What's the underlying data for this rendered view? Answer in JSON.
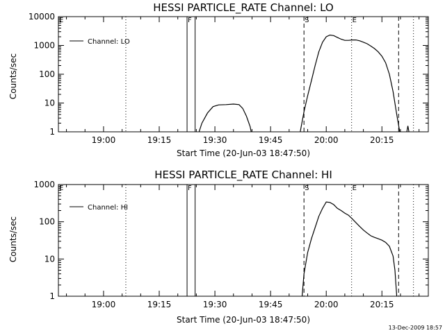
{
  "chart_data": [
    {
      "type": "line",
      "title": "HESSI PARTICLE_RATE Channel: LO",
      "xlabel": "Start Time (20-Jun-03 18:47:50)",
      "ylabel": "Counts/sec",
      "yscale": "log",
      "ylim": [
        1,
        10000
      ],
      "xlim": [
        "18:47:50",
        "20:27:30"
      ],
      "x_ticks": [
        "19:00",
        "19:15",
        "19:30",
        "19:45",
        "20:00",
        "20:15"
      ],
      "y_ticks": [
        "1",
        "10",
        "100",
        "1000",
        "10000"
      ],
      "legend": {
        "placement": "top-left",
        "entries": [
          "Channel: LO"
        ]
      },
      "markers": [
        {
          "label": "E",
          "time": "18:47:50",
          "style": "none"
        },
        {
          "label": "",
          "time": "19:06:00",
          "style": "dotted"
        },
        {
          "label": "F",
          "time": "19:22:30",
          "style": "solid"
        },
        {
          "label": "",
          "time": "19:24:40",
          "style": "solid"
        },
        {
          "label": "S",
          "time": "19:54:00",
          "style": "dashed"
        },
        {
          "label": "E",
          "time": "20:06:50",
          "style": "dotted"
        },
        {
          "label": "",
          "time": "20:19:30",
          "style": "dashed"
        },
        {
          "label": "",
          "time": "20:23:30",
          "style": "dotted"
        }
      ],
      "series": [
        {
          "name": "Channel: LO",
          "segments": [
            {
              "x": [
                "19:25:20",
                "19:26:30",
                "19:28:00",
                "19:29:30",
                "19:31:00",
                "19:33:00",
                "19:35:00",
                "19:36:30",
                "19:37:30",
                "19:38:30",
                "19:39:30",
                "19:40:00"
              ],
              "y": [
                0.7,
                2.0,
                4.5,
                7.5,
                8.6,
                8.8,
                9.2,
                8.8,
                6.5,
                3.5,
                1.5,
                0.7
              ]
            },
            {
              "x": [
                "19:53:00",
                "19:54:00",
                "19:55:00",
                "19:56:00",
                "19:57:00",
                "19:58:00",
                "19:59:00",
                "20:00:00",
                "20:01:00",
                "20:02:00",
                "20:03:00",
                "20:04:00",
                "20:05:00",
                "20:06:00",
                "20:07:00",
                "20:08:00",
                "20:09:00",
                "20:10:00",
                "20:11:00",
                "20:12:00",
                "20:13:00",
                "20:14:00",
                "20:15:00",
                "20:16:00",
                "20:17:00",
                "20:18:00",
                "20:19:00",
                "20:20:00"
              ],
              "y": [
                1,
                5,
                18,
                60,
                200,
                600,
                1300,
                2000,
                2300,
                2200,
                1900,
                1650,
                1500,
                1500,
                1550,
                1550,
                1450,
                1300,
                1150,
                950,
                780,
                600,
                420,
                250,
                100,
                25,
                4,
                0.7
              ]
            },
            {
              "x": [
                "20:21:30",
                "20:22:00",
                "20:22:30"
              ],
              "y": [
                0.7,
                1.6,
                0.7
              ]
            }
          ]
        }
      ]
    },
    {
      "type": "line",
      "title": "HESSI PARTICLE_RATE Channel: HI",
      "xlabel": "Start Time (20-Jun-03 18:47:50)",
      "ylabel": "Counts/sec",
      "yscale": "log",
      "ylim": [
        1,
        1000
      ],
      "xlim": [
        "18:47:50",
        "20:27:30"
      ],
      "x_ticks": [
        "19:00",
        "19:15",
        "19:30",
        "19:45",
        "20:00",
        "20:15"
      ],
      "y_ticks": [
        "1",
        "10",
        "100",
        "1000"
      ],
      "legend": {
        "placement": "top-left",
        "entries": [
          "Channel: HI"
        ]
      },
      "markers": [
        {
          "label": "E",
          "time": "18:47:50",
          "style": "none"
        },
        {
          "label": "",
          "time": "19:06:00",
          "style": "dotted"
        },
        {
          "label": "F",
          "time": "19:22:30",
          "style": "solid"
        },
        {
          "label": "",
          "time": "19:24:40",
          "style": "solid"
        },
        {
          "label": "S",
          "time": "19:54:00",
          "style": "dashed"
        },
        {
          "label": "E",
          "time": "20:06:50",
          "style": "dotted"
        },
        {
          "label": "",
          "time": "20:19:30",
          "style": "dashed"
        },
        {
          "label": "",
          "time": "20:23:30",
          "style": "dotted"
        }
      ],
      "series": [
        {
          "name": "Channel: HI",
          "segments": [
            {
              "x": [
                "19:53:30",
                "19:54:00",
                "19:55:00",
                "19:56:00",
                "19:57:00",
                "19:58:00",
                "19:59:00",
                "20:00:00",
                "20:01:00",
                "20:02:00",
                "20:03:00",
                "20:04:00",
                "20:05:00",
                "20:06:00",
                "20:07:00",
                "20:08:00",
                "20:09:00",
                "20:10:00",
                "20:11:00",
                "20:12:00",
                "20:13:00",
                "20:14:00",
                "20:15:00",
                "20:16:00",
                "20:17:00",
                "20:18:00",
                "20:18:30",
                "20:19:00"
              ],
              "y": [
                1,
                4,
                15,
                35,
                70,
                140,
                230,
                340,
                330,
                290,
                230,
                200,
                170,
                150,
                120,
                95,
                75,
                60,
                50,
                42,
                38,
                35,
                32,
                28,
                22,
                12,
                5,
                1
              ]
            }
          ]
        }
      ]
    }
  ],
  "footer": {
    "timestamp": "13-Dec-2009 18:57"
  }
}
